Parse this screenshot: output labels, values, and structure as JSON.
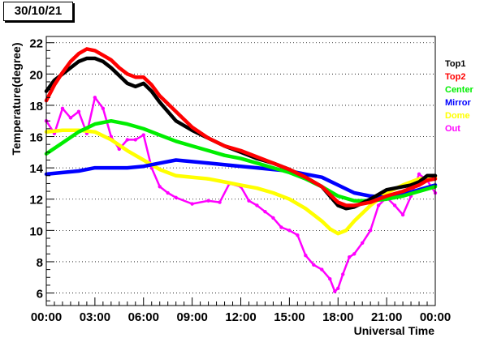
{
  "date_label": "30/10/21",
  "chart_data": {
    "type": "scatter",
    "title": "",
    "xlabel": "Universal Time",
    "ylabel": "Temperature(degree)",
    "x_unit": "hours UT",
    "xlim": [
      0,
      24
    ],
    "ylim": [
      5.2,
      22.4
    ],
    "x_ticks": [
      "00:00",
      "03:00",
      "06:00",
      "09:00",
      "12:00",
      "15:00",
      "18:00",
      "21:00",
      "00:00"
    ],
    "y_ticks": [
      6,
      8,
      10,
      12,
      14,
      16,
      18,
      20,
      22
    ],
    "grid": "horizontal-dotted",
    "legend_position": "right",
    "series": [
      {
        "name": "Top1",
        "color": "#000000",
        "x": [
          0,
          0.5,
          1,
          1.5,
          2,
          2.5,
          3,
          3.5,
          4,
          4.5,
          5,
          5.5,
          6,
          6.5,
          7,
          8,
          9,
          10,
          11,
          12,
          13,
          14,
          15,
          16,
          17,
          17.5,
          18,
          18.5,
          19,
          20,
          21,
          22,
          22.5,
          23,
          23.5,
          24
        ],
        "y": [
          18.9,
          19.6,
          20.0,
          20.4,
          20.8,
          21.0,
          21.0,
          20.8,
          20.4,
          19.9,
          19.4,
          19.2,
          19.4,
          18.9,
          18.2,
          17.0,
          16.4,
          15.9,
          15.4,
          15.0,
          14.6,
          14.3,
          13.9,
          13.4,
          12.8,
          12.2,
          11.6,
          11.4,
          11.5,
          12.0,
          12.6,
          12.8,
          12.9,
          13.1,
          13.5,
          13.5
        ]
      },
      {
        "name": "Top2",
        "color": "#ff0000",
        "x": [
          0,
          0.5,
          1,
          1.5,
          2,
          2.5,
          3,
          3.5,
          4,
          4.5,
          5,
          5.5,
          6,
          6.5,
          7,
          8,
          9,
          10,
          11,
          12,
          13,
          14,
          15,
          16,
          17,
          17.5,
          18,
          18.5,
          19,
          20,
          21,
          22,
          22.5,
          23,
          23.5,
          24
        ],
        "y": [
          18.3,
          19.3,
          20.1,
          20.8,
          21.3,
          21.6,
          21.5,
          21.2,
          20.9,
          20.4,
          20.0,
          19.8,
          19.8,
          19.3,
          18.6,
          17.6,
          16.6,
          15.9,
          15.4,
          15.1,
          14.7,
          14.3,
          13.9,
          13.4,
          12.8,
          12.3,
          11.8,
          11.6,
          11.6,
          11.8,
          12.2,
          12.5,
          12.7,
          12.9,
          13.2,
          13.3
        ]
      },
      {
        "name": "Center",
        "color": "#00ee00",
        "x": [
          0,
          1,
          2,
          3,
          4,
          5,
          6,
          7,
          8,
          9,
          10,
          11,
          12,
          13,
          14,
          15,
          16,
          17,
          18,
          19,
          20,
          21,
          22,
          23,
          24
        ],
        "y": [
          14.9,
          15.6,
          16.3,
          16.8,
          17.0,
          16.8,
          16.5,
          16.1,
          15.7,
          15.4,
          15.1,
          14.8,
          14.6,
          14.3,
          14.0,
          13.7,
          13.3,
          12.8,
          12.2,
          11.9,
          11.9,
          12.0,
          12.2,
          12.5,
          12.8
        ]
      },
      {
        "name": "Mirror",
        "color": "#0000ff",
        "x": [
          0,
          1,
          2,
          3,
          4,
          5,
          6,
          7,
          8,
          9,
          10,
          11,
          12,
          13,
          14,
          15,
          16,
          17,
          18,
          19,
          20,
          21,
          22,
          23,
          24
        ],
        "y": [
          13.6,
          13.7,
          13.8,
          14.0,
          14.0,
          14.0,
          14.1,
          14.3,
          14.5,
          14.4,
          14.3,
          14.2,
          14.1,
          14.0,
          13.9,
          13.8,
          13.6,
          13.4,
          12.9,
          12.4,
          12.2,
          12.1,
          12.3,
          12.6,
          12.9
        ]
      },
      {
        "name": "Dome",
        "color": "#ffff00",
        "x": [
          0,
          1,
          2,
          3,
          4,
          5,
          6,
          7,
          8,
          9,
          10,
          11,
          12,
          13,
          14,
          15,
          16,
          17,
          17.5,
          18,
          18.5,
          19,
          20,
          21,
          22,
          23,
          24
        ],
        "y": [
          16.3,
          16.4,
          16.4,
          16.3,
          15.8,
          15.1,
          14.5,
          13.9,
          13.5,
          13.4,
          13.3,
          13.1,
          12.9,
          12.7,
          12.4,
          12.0,
          11.4,
          10.6,
          10.1,
          9.8,
          10.0,
          10.6,
          11.6,
          12.4,
          12.9,
          13.3,
          13.4
        ]
      },
      {
        "name": "Out",
        "color": "#ff00ff",
        "x": [
          0,
          0.5,
          1,
          1.5,
          2,
          2.5,
          3,
          3.5,
          4,
          4.5,
          5,
          5.5,
          6,
          6.5,
          7,
          7.5,
          8,
          9,
          10,
          10.7,
          11.3,
          12,
          12.5,
          13,
          13.5,
          14,
          14.5,
          15,
          15.5,
          16,
          16.5,
          17,
          17.5,
          17.8,
          18,
          18.3,
          18.7,
          19,
          19.5,
          20,
          20.5,
          21,
          21.5,
          22,
          22.5,
          23,
          23.5,
          24
        ],
        "y": [
          17.0,
          16.2,
          17.8,
          17.2,
          17.6,
          16.2,
          18.5,
          17.8,
          16.0,
          15.2,
          15.8,
          15.8,
          16.1,
          14.0,
          12.8,
          12.4,
          12.1,
          11.7,
          11.9,
          11.8,
          13.0,
          12.8,
          11.9,
          11.6,
          11.2,
          10.8,
          10.2,
          10.0,
          9.7,
          8.4,
          7.8,
          7.5,
          6.9,
          6.1,
          6.3,
          7.2,
          8.3,
          8.5,
          9.2,
          10.0,
          11.6,
          12.1,
          11.6,
          11.0,
          12.2,
          13.6,
          13.2,
          12.4
        ]
      }
    ]
  }
}
